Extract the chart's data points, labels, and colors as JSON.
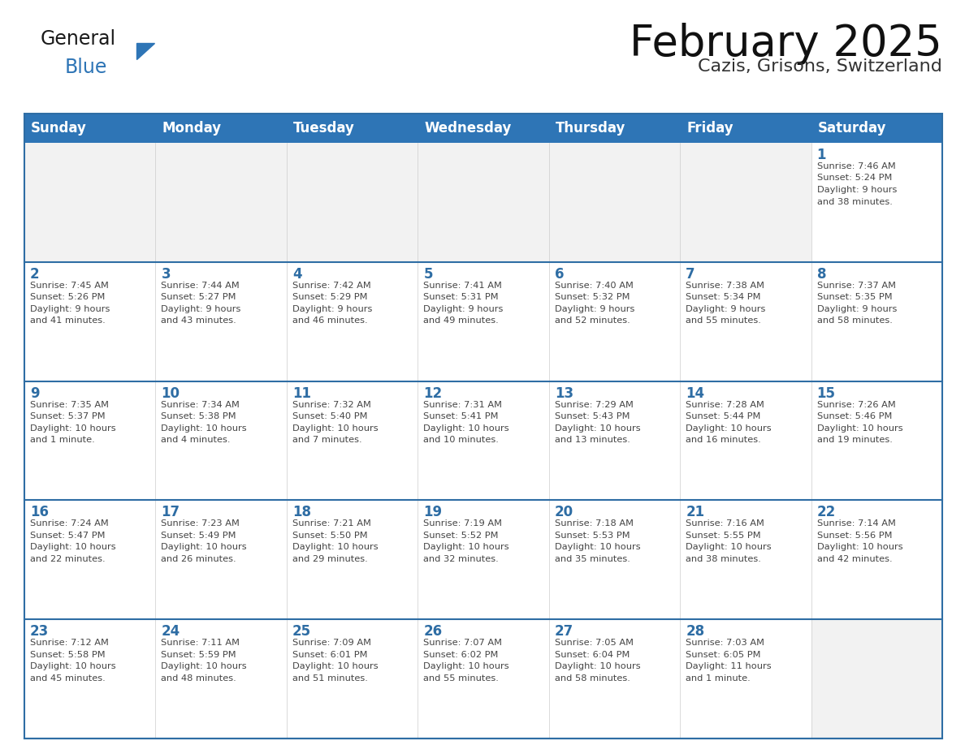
{
  "title": "February 2025",
  "subtitle": "Cazis, Grisons, Switzerland",
  "header_bg": "#2E75B6",
  "header_text_color": "#FFFFFF",
  "weekdays": [
    "Sunday",
    "Monday",
    "Tuesday",
    "Wednesday",
    "Thursday",
    "Friday",
    "Saturday"
  ],
  "cell_border_color": "#2E6DA4",
  "row_divider_color": "#2E6DA4",
  "cell_bg": "#FFFFFF",
  "empty_cell_bg": "#F2F2F2",
  "day_num_color": "#2E6DA4",
  "info_text_color": "#444444",
  "logo_general_color": "#1a1a1a",
  "logo_blue_color": "#2E75B6",
  "calendar": [
    [
      null,
      null,
      null,
      null,
      null,
      null,
      {
        "day": 1,
        "sunrise": "7:46 AM",
        "sunset": "5:24 PM",
        "daylight": "9 hours and 38 minutes."
      }
    ],
    [
      {
        "day": 2,
        "sunrise": "7:45 AM",
        "sunset": "5:26 PM",
        "daylight": "9 hours and 41 minutes."
      },
      {
        "day": 3,
        "sunrise": "7:44 AM",
        "sunset": "5:27 PM",
        "daylight": "9 hours and 43 minutes."
      },
      {
        "day": 4,
        "sunrise": "7:42 AM",
        "sunset": "5:29 PM",
        "daylight": "9 hours and 46 minutes."
      },
      {
        "day": 5,
        "sunrise": "7:41 AM",
        "sunset": "5:31 PM",
        "daylight": "9 hours and 49 minutes."
      },
      {
        "day": 6,
        "sunrise": "7:40 AM",
        "sunset": "5:32 PM",
        "daylight": "9 hours and 52 minutes."
      },
      {
        "day": 7,
        "sunrise": "7:38 AM",
        "sunset": "5:34 PM",
        "daylight": "9 hours and 55 minutes."
      },
      {
        "day": 8,
        "sunrise": "7:37 AM",
        "sunset": "5:35 PM",
        "daylight": "9 hours and 58 minutes."
      }
    ],
    [
      {
        "day": 9,
        "sunrise": "7:35 AM",
        "sunset": "5:37 PM",
        "daylight": "10 hours and 1 minute."
      },
      {
        "day": 10,
        "sunrise": "7:34 AM",
        "sunset": "5:38 PM",
        "daylight": "10 hours and 4 minutes."
      },
      {
        "day": 11,
        "sunrise": "7:32 AM",
        "sunset": "5:40 PM",
        "daylight": "10 hours and 7 minutes."
      },
      {
        "day": 12,
        "sunrise": "7:31 AM",
        "sunset": "5:41 PM",
        "daylight": "10 hours and 10 minutes."
      },
      {
        "day": 13,
        "sunrise": "7:29 AM",
        "sunset": "5:43 PM",
        "daylight": "10 hours and 13 minutes."
      },
      {
        "day": 14,
        "sunrise": "7:28 AM",
        "sunset": "5:44 PM",
        "daylight": "10 hours and 16 minutes."
      },
      {
        "day": 15,
        "sunrise": "7:26 AM",
        "sunset": "5:46 PM",
        "daylight": "10 hours and 19 minutes."
      }
    ],
    [
      {
        "day": 16,
        "sunrise": "7:24 AM",
        "sunset": "5:47 PM",
        "daylight": "10 hours and 22 minutes."
      },
      {
        "day": 17,
        "sunrise": "7:23 AM",
        "sunset": "5:49 PM",
        "daylight": "10 hours and 26 minutes."
      },
      {
        "day": 18,
        "sunrise": "7:21 AM",
        "sunset": "5:50 PM",
        "daylight": "10 hours and 29 minutes."
      },
      {
        "day": 19,
        "sunrise": "7:19 AM",
        "sunset": "5:52 PM",
        "daylight": "10 hours and 32 minutes."
      },
      {
        "day": 20,
        "sunrise": "7:18 AM",
        "sunset": "5:53 PM",
        "daylight": "10 hours and 35 minutes."
      },
      {
        "day": 21,
        "sunrise": "7:16 AM",
        "sunset": "5:55 PM",
        "daylight": "10 hours and 38 minutes."
      },
      {
        "day": 22,
        "sunrise": "7:14 AM",
        "sunset": "5:56 PM",
        "daylight": "10 hours and 42 minutes."
      }
    ],
    [
      {
        "day": 23,
        "sunrise": "7:12 AM",
        "sunset": "5:58 PM",
        "daylight": "10 hours and 45 minutes."
      },
      {
        "day": 24,
        "sunrise": "7:11 AM",
        "sunset": "5:59 PM",
        "daylight": "10 hours and 48 minutes."
      },
      {
        "day": 25,
        "sunrise": "7:09 AM",
        "sunset": "6:01 PM",
        "daylight": "10 hours and 51 minutes."
      },
      {
        "day": 26,
        "sunrise": "7:07 AM",
        "sunset": "6:02 PM",
        "daylight": "10 hours and 55 minutes."
      },
      {
        "day": 27,
        "sunrise": "7:05 AM",
        "sunset": "6:04 PM",
        "daylight": "10 hours and 58 minutes."
      },
      {
        "day": 28,
        "sunrise": "7:03 AM",
        "sunset": "6:05 PM",
        "daylight": "11 hours and 1 minute."
      },
      null
    ]
  ]
}
